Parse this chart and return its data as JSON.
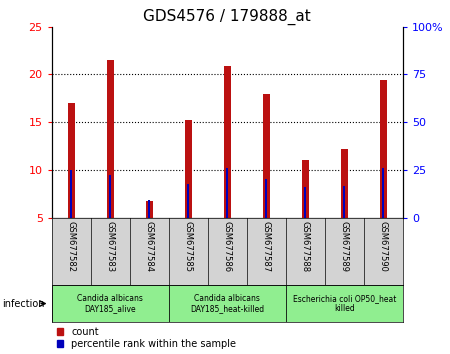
{
  "title": "GDS4576 / 179888_at",
  "samples": [
    "GSM677582",
    "GSM677583",
    "GSM677584",
    "GSM677585",
    "GSM677586",
    "GSM677587",
    "GSM677588",
    "GSM677589",
    "GSM677590"
  ],
  "counts": [
    17.0,
    21.5,
    6.8,
    15.2,
    20.9,
    17.9,
    11.0,
    12.2,
    19.4
  ],
  "percentile_ranks": [
    10.0,
    9.5,
    6.9,
    8.5,
    10.2,
    9.0,
    8.2,
    8.3,
    10.2
  ],
  "ylim_left": [
    5,
    25
  ],
  "ylim_right": [
    0,
    100
  ],
  "yticks_left": [
    5,
    10,
    15,
    20,
    25
  ],
  "yticks_right": [
    0,
    25,
    50,
    75,
    100
  ],
  "ytick_labels_right": [
    "0",
    "25",
    "50",
    "75",
    "100%"
  ],
  "bar_color": "#bb1111",
  "percentile_color": "#0000bb",
  "bar_width": 0.18,
  "percentile_bar_width": 0.06,
  "groups": [
    {
      "label": "Candida albicans\nDAY185_alive",
      "samples_idx": [
        0,
        1,
        2
      ],
      "color": "#90EE90"
    },
    {
      "label": "Candida albicans\nDAY185_heat-killed",
      "samples_idx": [
        3,
        4,
        5
      ],
      "color": "#90EE90"
    },
    {
      "label": "Escherichia coli OP50_heat\nkilled",
      "samples_idx": [
        6,
        7,
        8
      ],
      "color": "#90EE90"
    }
  ],
  "infection_label": "infection",
  "legend_count_label": "count",
  "legend_percentile_label": "percentile rank within the sample",
  "tick_bg_color": "#d3d3d3",
  "background_color": "#ffffff",
  "title_fontsize": 11,
  "axis_label_fontsize": 8,
  "sample_label_fontsize": 6,
  "group_label_fontsize": 5.5,
  "legend_fontsize": 7
}
